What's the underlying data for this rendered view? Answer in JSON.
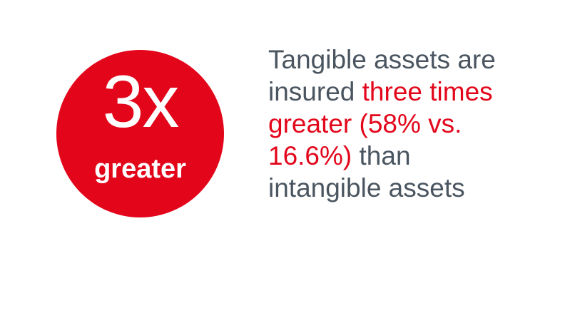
{
  "badge": {
    "value": "3x",
    "label": "greater",
    "color": "#e3061b"
  },
  "statement": {
    "line1": "Tangible assets are",
    "line2_prefix": "insured ",
    "line2_highlight": "three times",
    "line3_highlight": "greater (58% vs.",
    "line4_highlight": "16.6%)",
    "line4_suffix": " than",
    "line5": "intangible assets",
    "text_color": "#4a5560",
    "highlight_color": "#e3061b"
  }
}
